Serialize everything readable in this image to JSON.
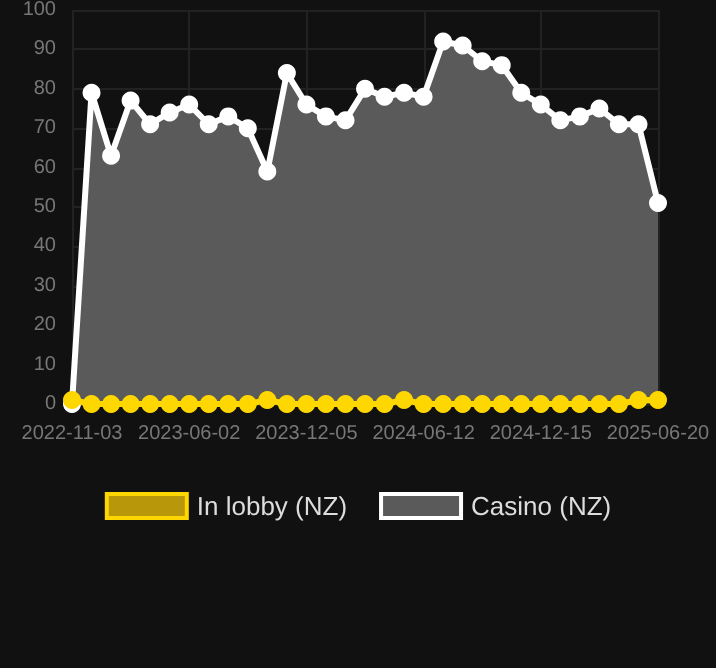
{
  "chart_data": {
    "type": "area",
    "categories": [
      "2022-11-03",
      null,
      null,
      null,
      null,
      null,
      "2023-06-02",
      null,
      null,
      null,
      null,
      null,
      "2023-12-05",
      null,
      null,
      null,
      null,
      null,
      "2024-06-12",
      null,
      null,
      null,
      null,
      null,
      "2024-12-15",
      null,
      null,
      null,
      null,
      null,
      "2025-06-20"
    ],
    "series": [
      {
        "name": "In lobby (NZ)",
        "type": "line",
        "color": "#ffd700",
        "values": [
          1,
          0,
          0,
          0,
          0,
          0,
          0,
          0,
          0,
          0,
          1,
          0,
          0,
          0,
          0,
          0,
          0,
          1,
          0,
          0,
          0,
          0,
          0,
          0,
          0,
          0,
          0,
          0,
          0,
          1,
          1
        ]
      },
      {
        "name": "Casino (NZ)",
        "color": "#ffffff",
        "values": [
          0,
          79,
          63,
          77,
          71,
          74,
          76,
          71,
          73,
          70,
          59,
          84,
          76,
          73,
          72,
          80,
          78,
          79,
          78,
          92,
          91,
          87,
          86,
          79,
          76,
          72,
          73,
          75,
          71,
          71,
          51
        ]
      }
    ],
    "ylim": [
      0,
      100
    ],
    "yticks": [
      0,
      10,
      20,
      30,
      40,
      50,
      60,
      70,
      80,
      90,
      100
    ],
    "grid": true,
    "legend": "bottom",
    "marker": "circle",
    "line_style": "solid"
  }
}
